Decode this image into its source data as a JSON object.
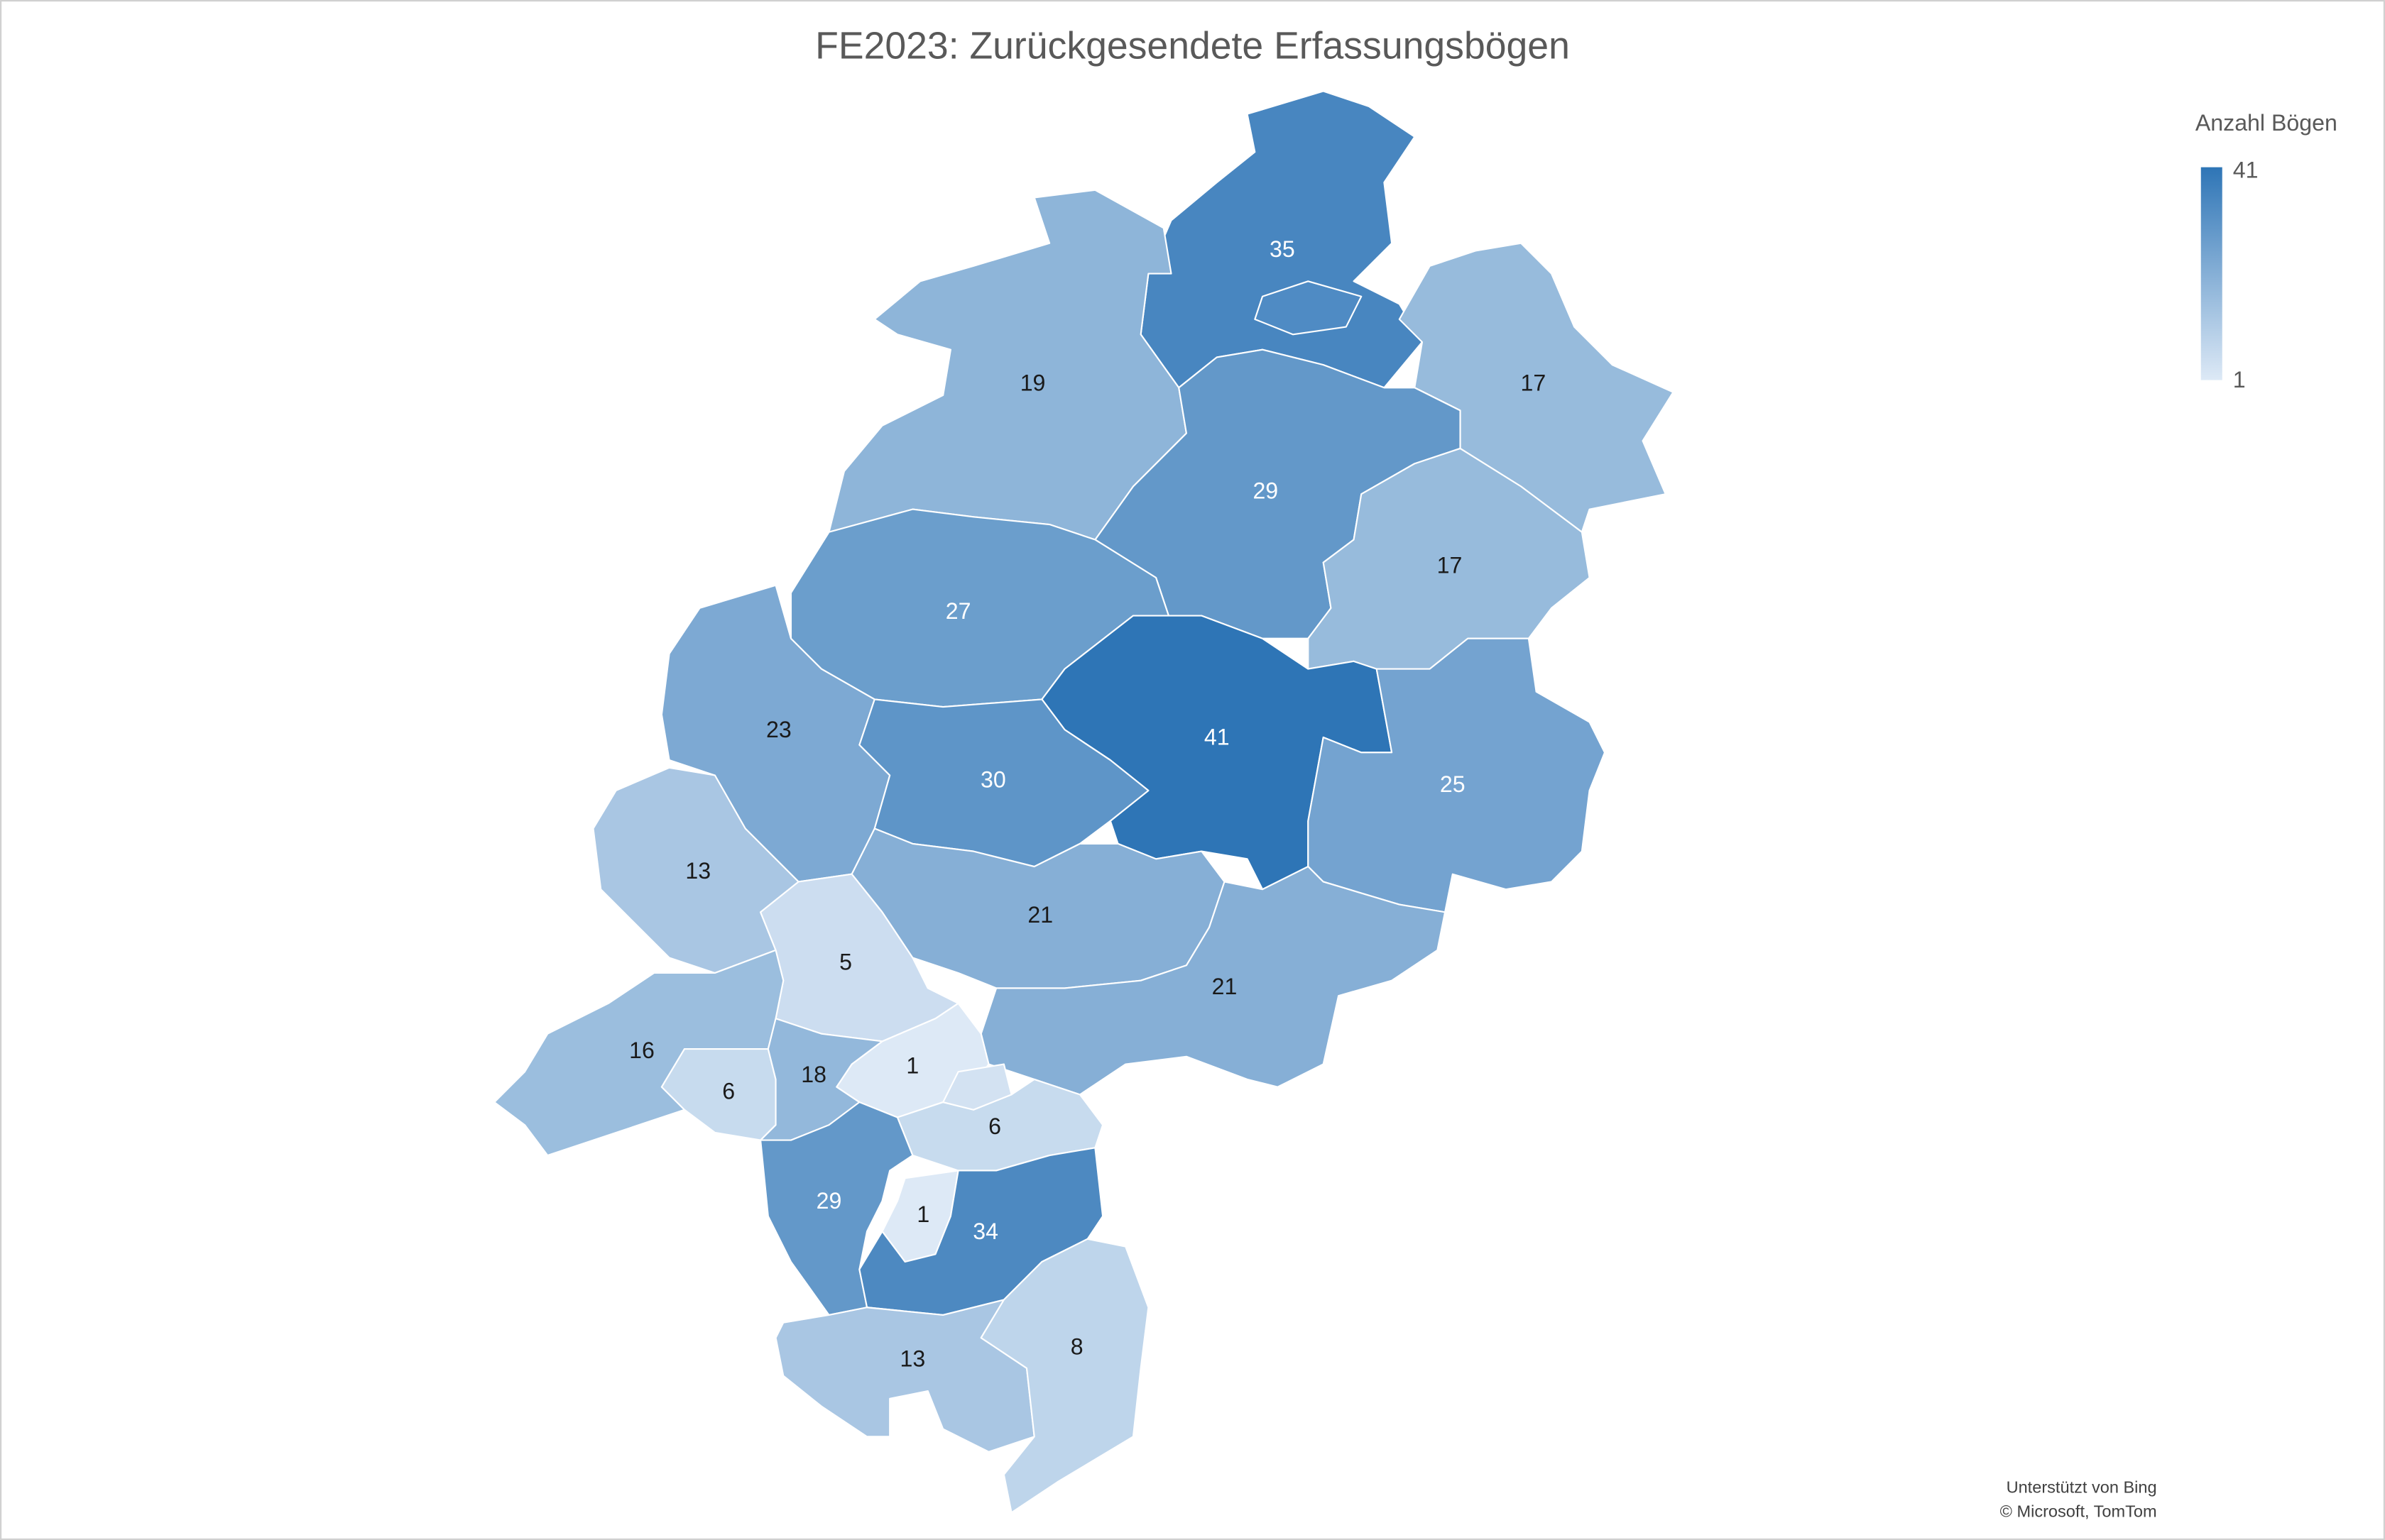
{
  "chart_data": {
    "type": "choropleth",
    "title": "FE2023: Zurückgesendete Erfassungsbögen",
    "legend_title": "Anzahl Bögen",
    "scale": [
      1,
      41
    ],
    "color_min": "#dde9f6",
    "color_max": "#2e75b6",
    "values": [
      35,
      19,
      17,
      29,
      17,
      27,
      41,
      23,
      30,
      25,
      13,
      21,
      5,
      21,
      16,
      1,
      6,
      18,
      6,
      29,
      1,
      34,
      13,
      8
    ],
    "attribution": [
      "Unterstützt von Bing",
      "© Microsoft, TomTom"
    ]
  }
}
